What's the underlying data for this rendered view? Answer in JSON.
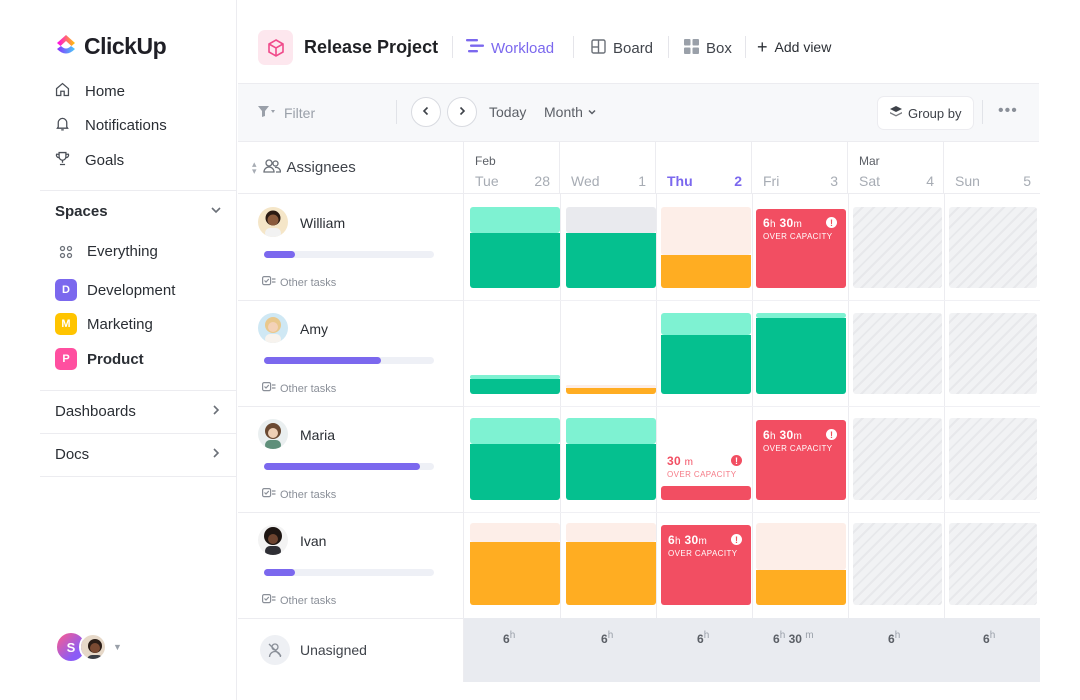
{
  "brand": {
    "name": "ClickUp"
  },
  "nav": [
    {
      "label": "Home",
      "icon": "home-icon"
    },
    {
      "label": "Notifications",
      "icon": "bell-icon"
    },
    {
      "label": "Goals",
      "icon": "trophy-icon"
    }
  ],
  "spaces": {
    "title": "Spaces",
    "everything": "Everything",
    "items": [
      {
        "label": "Development",
        "letter": "D",
        "color": "#7b68ee"
      },
      {
        "label": "Marketing",
        "letter": "M",
        "color": "#ffc400"
      },
      {
        "label": "Product",
        "letter": "P",
        "color": "#ff4fa0"
      }
    ]
  },
  "sections": {
    "dashboards": "Dashboards",
    "docs": "Docs"
  },
  "user": {
    "initial": "S"
  },
  "header": {
    "project_title": "Release Project",
    "tabs": [
      {
        "label": "Workload",
        "active": true
      },
      {
        "label": "Board",
        "active": false
      },
      {
        "label": "Box",
        "active": false
      }
    ],
    "add_view": "Add view"
  },
  "toolbar": {
    "filter_placeholder": "Filter",
    "today": "Today",
    "range": "Month",
    "group_by": "Group by"
  },
  "assignees": {
    "title": "Assignees",
    "people": [
      {
        "name": "William",
        "other": "Other tasks",
        "load": 0.18
      },
      {
        "name": "Amy",
        "other": "Other tasks",
        "load": 0.69
      },
      {
        "name": "Maria",
        "other": "Other tasks",
        "load": 0.92
      },
      {
        "name": "Ivan",
        "other": "Other tasks",
        "load": 0.18
      }
    ],
    "unassigned": "Unasigned"
  },
  "calendar": {
    "days": [
      {
        "month": "Feb",
        "name": "Tue",
        "num": "28",
        "today": false,
        "weekend": false
      },
      {
        "month": "",
        "name": "Wed",
        "num": "1",
        "today": false,
        "weekend": false
      },
      {
        "month": "",
        "name": "Thu",
        "num": "2",
        "today": true,
        "weekend": false
      },
      {
        "month": "",
        "name": "Fri",
        "num": "3",
        "today": false,
        "weekend": false
      },
      {
        "month": "Mar",
        "name": "Sat",
        "num": "4",
        "today": false,
        "weekend": true
      },
      {
        "month": "",
        "name": "Sun",
        "num": "5",
        "today": false,
        "weekend": true
      }
    ],
    "over_capacity_text": "OVER CAPACITY",
    "over_capacity": [
      {
        "person": "William",
        "day": "Fri",
        "h": "6",
        "m": "30"
      },
      {
        "person": "Maria",
        "day": "Thu",
        "h": "",
        "m": "30"
      },
      {
        "person": "Maria",
        "day": "Fri",
        "h": "6",
        "m": "30"
      },
      {
        "person": "Ivan",
        "day": "Thu",
        "h": "6",
        "m": "30"
      }
    ],
    "unit_h": "h",
    "unit_m": "m",
    "footer": [
      {
        "h": "6",
        "m": ""
      },
      {
        "h": "6",
        "m": ""
      },
      {
        "h": "6",
        "m": ""
      },
      {
        "h": "6",
        "m": "30"
      },
      {
        "h": "6",
        "m": ""
      },
      {
        "h": "6",
        "m": ""
      }
    ]
  },
  "colors": {
    "accent": "#7b68ee",
    "green": "#05c08f",
    "green_light": "#7ef2d2",
    "orange": "#ffad22",
    "red": "#f24e62",
    "peach": "#fdeee8"
  }
}
